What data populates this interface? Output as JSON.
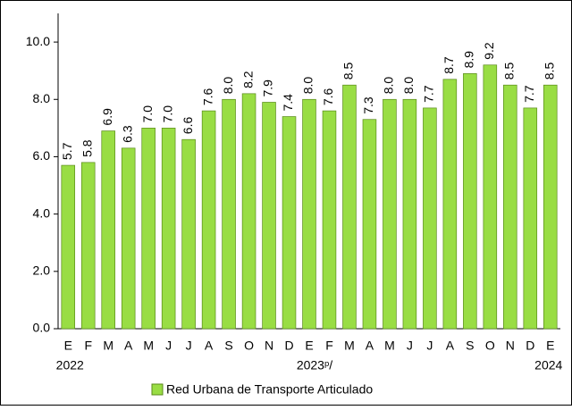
{
  "chart_data": {
    "type": "bar",
    "categories": [
      "E",
      "F",
      "M",
      "A",
      "M",
      "J",
      "J",
      "A",
      "S",
      "O",
      "N",
      "D",
      "E",
      "F",
      "M",
      "A",
      "M",
      "J",
      "J",
      "A",
      "S",
      "O",
      "N",
      "D",
      "E"
    ],
    "years": [
      "2022",
      "2023ᵖ/",
      "2024"
    ],
    "series": [
      {
        "name": "Red Urbana de Transporte Articulado",
        "color": "#99dd44",
        "values": [
          5.7,
          5.8,
          6.9,
          6.3,
          7.0,
          7.0,
          6.6,
          7.6,
          8.0,
          8.2,
          7.9,
          7.4,
          8.0,
          7.6,
          8.5,
          7.3,
          8.0,
          8.0,
          7.7,
          8.7,
          8.9,
          9.2,
          8.5,
          7.7,
          8.5
        ],
        "value_labels": [
          "5.7",
          "5.8",
          "6.9",
          "6.3",
          "7.0",
          "7.0",
          "6.6",
          "7.6",
          "8.0",
          "8.2",
          "7.9",
          "7.4",
          "8.0",
          "7.6",
          "8.5",
          "7.3",
          "8.0",
          "8.0",
          "7.7",
          "8.7",
          "8.9",
          "9.2",
          "8.5",
          "7.7",
          "8.5"
        ]
      }
    ],
    "ylim": [
      0,
      11
    ],
    "yticks": [
      {
        "value": 0,
        "label": "0.0"
      },
      {
        "value": 2,
        "label": "2.0"
      },
      {
        "value": 4,
        "label": "4.0"
      },
      {
        "value": 6,
        "label": "6.0"
      },
      {
        "value": 8,
        "label": "8.0"
      },
      {
        "value": 10,
        "label": "10.0"
      }
    ],
    "legend": "bottom"
  }
}
